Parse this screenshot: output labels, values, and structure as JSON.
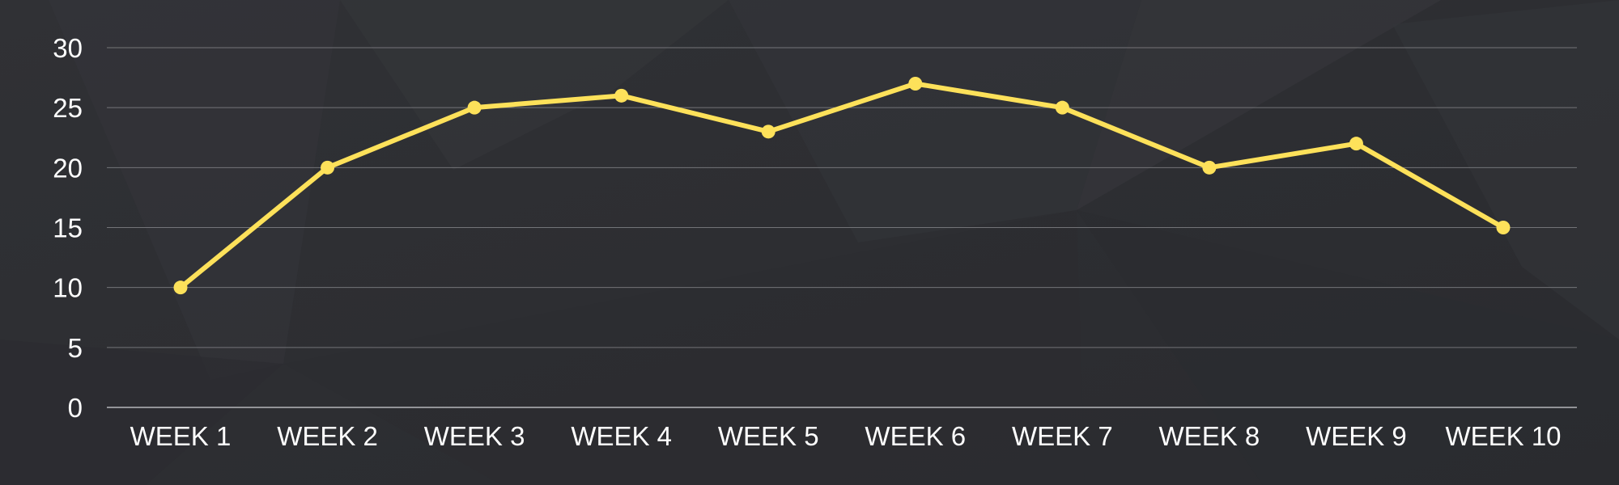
{
  "colors": {
    "background": "#2e2f33",
    "grid": "#8a8b8f",
    "axis": "#b5b6ba",
    "text": "#ffffff",
    "series": "#fde15a"
  },
  "chart_data": {
    "type": "line",
    "title": "",
    "xlabel": "",
    "ylabel": "",
    "categories": [
      "WEEK 1",
      "WEEK 2",
      "WEEK 3",
      "WEEK 4",
      "WEEK 5",
      "WEEK 6",
      "WEEK 7",
      "WEEK 8",
      "WEEK 9",
      "WEEK 10"
    ],
    "series": [
      {
        "color": "#fde15a",
        "values": [
          10,
          20,
          25,
          26,
          23,
          27,
          25,
          20,
          22,
          15
        ]
      }
    ],
    "ylim": [
      0,
      30
    ],
    "yticks": [
      "0",
      "5",
      "10",
      "15",
      "20",
      "25",
      "30"
    ],
    "grid": true,
    "legend": "none",
    "markers": true
  }
}
